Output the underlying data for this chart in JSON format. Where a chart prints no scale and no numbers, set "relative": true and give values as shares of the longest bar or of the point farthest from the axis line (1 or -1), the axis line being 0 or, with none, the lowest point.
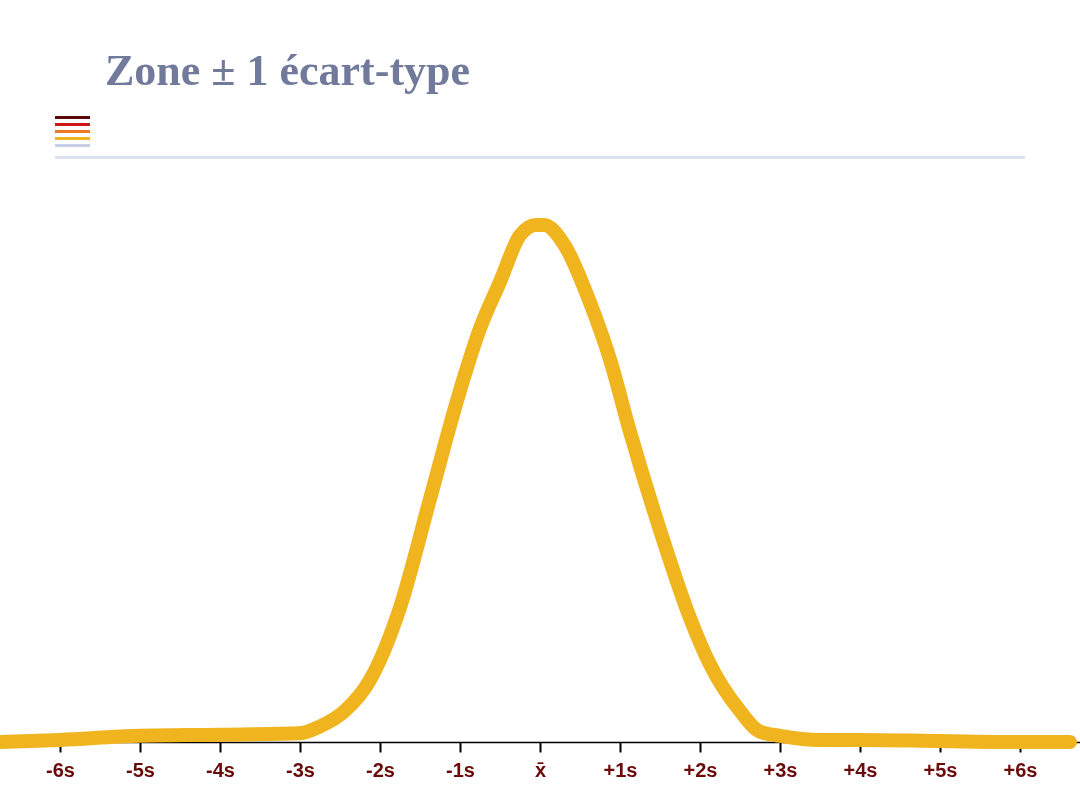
{
  "chart_data": {
    "type": "line",
    "title": "Zone ± 1 écart-type",
    "relative": true,
    "color": "#f0b41e",
    "x": [
      -6.75,
      -6,
      -5,
      -4,
      -3,
      -2.75,
      -2.44,
      -2.125,
      -1.75,
      -1.375,
      -1,
      -0.75,
      -0.5,
      -0.25,
      -0.05,
      0.05,
      0.31,
      0.625,
      0.875,
      1.125,
      1.5,
      1.875,
      2.125,
      2.5,
      2.75,
      3,
      3.5,
      4,
      5,
      6,
      6.625
    ],
    "values": [
      0,
      0.004,
      0.012,
      0.014,
      0.017,
      0.03,
      0.06,
      0.12,
      0.26,
      0.47,
      0.68,
      0.8,
      0.89,
      0.98,
      1,
      1,
      0.96,
      0.85,
      0.74,
      0.6,
      0.41,
      0.24,
      0.15,
      0.06,
      0.02,
      0.012,
      0.004,
      0.004,
      0.002,
      0,
      0
    ],
    "xlim": [
      -6.75,
      6.75
    ],
    "xticks": [
      {
        "value": -6,
        "label": "-6s"
      },
      {
        "value": -5,
        "label": "-5s"
      },
      {
        "value": -4,
        "label": "-4s"
      },
      {
        "value": -3,
        "label": "-3s"
      },
      {
        "value": -2,
        "label": "-2s"
      },
      {
        "value": -1,
        "label": "-1s"
      },
      {
        "value": 0,
        "label": "x̄"
      },
      {
        "value": 1,
        "label": "+1s"
      },
      {
        "value": 2,
        "label": "+2s"
      },
      {
        "value": 3,
        "label": "+3s"
      },
      {
        "value": 4,
        "label": "+4s"
      },
      {
        "value": 5,
        "label": "+5s"
      },
      {
        "value": 6,
        "label": "+6s"
      }
    ]
  }
}
